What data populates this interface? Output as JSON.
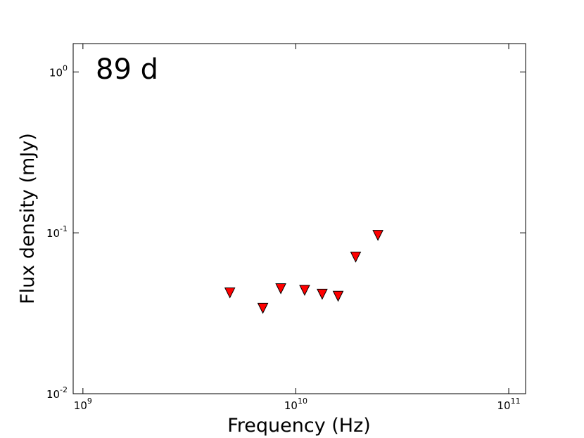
{
  "chart_data": {
    "type": "scatter",
    "annotation": "89 d",
    "xlabel": "Frequency (Hz)",
    "ylabel": "Flux density (mJy)",
    "x": [
      4900000000,
      7000000000,
      8500000000,
      11000000000,
      13300000000,
      15800000000,
      19100000000,
      24300000000
    ],
    "values": [
      0.0424,
      0.034,
      0.045,
      0.044,
      0.0416,
      0.0404,
      0.0708,
      0.0966
    ],
    "color": "#ff0000",
    "marker": "triangle_down",
    "xscale": "log",
    "yscale": "log",
    "xlim": [
      900000000,
      120000000000
    ],
    "ylim": [
      0.01,
      1.5
    ],
    "xticks": [
      {
        "value": 1000000000,
        "label": "10",
        "exponent": "9"
      },
      {
        "value": 10000000000,
        "label": "10",
        "exponent": "10"
      },
      {
        "value": 100000000000,
        "label": "10",
        "exponent": "11"
      }
    ],
    "yticks": [
      {
        "value": 0.01,
        "label": "10",
        "exponent": "-2"
      },
      {
        "value": 0.1,
        "label": "10",
        "exponent": "-1"
      },
      {
        "value": 1,
        "label": "10",
        "exponent": "0"
      }
    ]
  }
}
